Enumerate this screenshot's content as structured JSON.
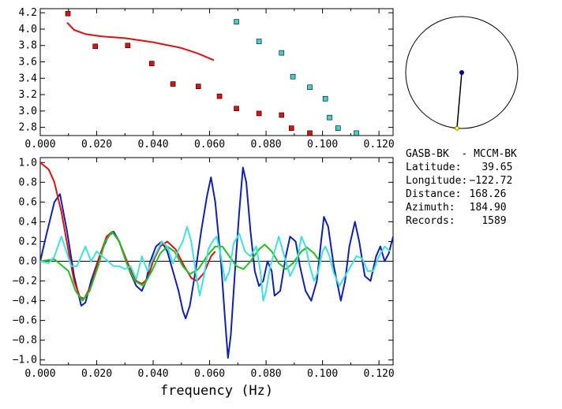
{
  "chart_data": [
    {
      "type": "scatter",
      "xlim": [
        0.0,
        0.125
      ],
      "ylim": [
        2.7,
        4.25
      ],
      "xticks": [
        "0.000",
        "0.020",
        "0.040",
        "0.060",
        "0.080",
        "0.100",
        "0.120"
      ],
      "yticks": [
        "2.8",
        "3.0",
        "3.2",
        "3.4",
        "3.6",
        "3.8",
        "4.0",
        "4.2"
      ],
      "series": [
        {
          "color": "#e01010",
          "marker": "square",
          "points": [
            [
              0.0098,
              4.19
            ],
            [
              0.0195,
              3.79
            ],
            [
              0.031,
              3.8
            ],
            [
              0.0395,
              3.58
            ],
            [
              0.047,
              3.33
            ],
            [
              0.056,
              3.3
            ],
            [
              0.0635,
              3.18
            ],
            [
              0.0695,
              3.03
            ],
            [
              0.0775,
              2.97
            ],
            [
              0.0855,
              2.95
            ],
            [
              0.089,
              2.79
            ],
            [
              0.0955,
              2.73
            ]
          ]
        },
        {
          "color": "#40d0d0",
          "marker": "square",
          "points": [
            [
              0.0695,
              4.09
            ],
            [
              0.0775,
              3.85
            ],
            [
              0.0855,
              3.71
            ],
            [
              0.0895,
              3.42
            ],
            [
              0.0955,
              3.29
            ],
            [
              0.101,
              3.15
            ],
            [
              0.1025,
              2.92
            ],
            [
              0.1055,
              2.79
            ],
            [
              0.112,
              2.73
            ]
          ]
        },
        {
          "color": "#e01010",
          "marker": "line",
          "points": [
            [
              0.0095,
              4.08
            ],
            [
              0.012,
              3.99
            ],
            [
              0.016,
              3.94
            ],
            [
              0.022,
              3.91
            ],
            [
              0.03,
              3.89
            ],
            [
              0.04,
              3.84
            ],
            [
              0.05,
              3.77
            ],
            [
              0.056,
              3.7
            ],
            [
              0.0615,
              3.62
            ]
          ]
        }
      ]
    },
    {
      "type": "line",
      "xlim": [
        0.0,
        0.125
      ],
      "ylim": [
        -1.05,
        1.05
      ],
      "xticks": [
        "0.000",
        "0.020",
        "0.040",
        "0.060",
        "0.080",
        "0.100",
        "0.120"
      ],
      "yticks": [
        "1.0",
        "0.8",
        "0.6",
        "0.4",
        "0.2",
        "0.0",
        "−0.2",
        "−0.4",
        "−0.6",
        "−0.8",
        "−1.0"
      ],
      "xlabel": "frequency (Hz)",
      "zero_line": true,
      "series": [
        {
          "color": "#1020b0",
          "points": [
            [
              0.0,
              0.0
            ],
            [
              0.002,
              0.25
            ],
            [
              0.005,
              0.6
            ],
            [
              0.007,
              0.68
            ],
            [
              0.0095,
              0.3
            ],
            [
              0.012,
              -0.15
            ],
            [
              0.0145,
              -0.45
            ],
            [
              0.016,
              -0.42
            ],
            [
              0.018,
              -0.2
            ],
            [
              0.021,
              0.05
            ],
            [
              0.024,
              0.25
            ],
            [
              0.026,
              0.3
            ],
            [
              0.028,
              0.2
            ],
            [
              0.03,
              0.03
            ],
            [
              0.032,
              -0.12
            ],
            [
              0.034,
              -0.25
            ],
            [
              0.036,
              -0.3
            ],
            [
              0.0375,
              -0.2
            ],
            [
              0.039,
              0.0
            ],
            [
              0.041,
              0.15
            ],
            [
              0.043,
              0.2
            ],
            [
              0.045,
              0.1
            ],
            [
              0.047,
              -0.1
            ],
            [
              0.049,
              -0.3
            ],
            [
              0.0505,
              -0.5
            ],
            [
              0.0515,
              -0.58
            ],
            [
              0.053,
              -0.45
            ],
            [
              0.055,
              -0.1
            ],
            [
              0.057,
              0.3
            ],
            [
              0.059,
              0.65
            ],
            [
              0.0605,
              0.85
            ],
            [
              0.062,
              0.6
            ],
            [
              0.064,
              0.0
            ],
            [
              0.0655,
              -0.6
            ],
            [
              0.0665,
              -0.98
            ],
            [
              0.0675,
              -0.75
            ],
            [
              0.069,
              -0.1
            ],
            [
              0.0705,
              0.5
            ],
            [
              0.0718,
              0.95
            ],
            [
              0.073,
              0.8
            ],
            [
              0.0745,
              0.3
            ],
            [
              0.076,
              -0.1
            ],
            [
              0.0775,
              -0.25
            ],
            [
              0.079,
              -0.2
            ],
            [
              0.0805,
              0.0
            ],
            [
              0.082,
              -0.1
            ],
            [
              0.083,
              -0.35
            ],
            [
              0.085,
              -0.3
            ],
            [
              0.087,
              0.05
            ],
            [
              0.0885,
              0.25
            ],
            [
              0.0905,
              0.2
            ],
            [
              0.092,
              -0.05
            ],
            [
              0.094,
              -0.3
            ],
            [
              0.096,
              -0.4
            ],
            [
              0.098,
              -0.2
            ],
            [
              0.0995,
              0.2
            ],
            [
              0.1005,
              0.45
            ],
            [
              0.102,
              0.35
            ],
            [
              0.104,
              -0.05
            ],
            [
              0.1065,
              -0.4
            ],
            [
              0.108,
              -0.2
            ],
            [
              0.1095,
              0.15
            ],
            [
              0.1115,
              0.4
            ],
            [
              0.113,
              0.2
            ],
            [
              0.115,
              -0.15
            ],
            [
              0.117,
              -0.2
            ],
            [
              0.119,
              0.05
            ],
            [
              0.1205,
              0.15
            ],
            [
              0.122,
              0.0
            ],
            [
              0.1235,
              0.08
            ],
            [
              0.125,
              0.25
            ]
          ]
        },
        {
          "color": "#e01010",
          "points": [
            [
              0.0,
              1.0
            ],
            [
              0.003,
              0.93
            ],
            [
              0.005,
              0.8
            ],
            [
              0.0075,
              0.5
            ],
            [
              0.01,
              0.1
            ],
            [
              0.012,
              -0.2
            ],
            [
              0.014,
              -0.36
            ],
            [
              0.0155,
              -0.38
            ],
            [
              0.018,
              -0.25
            ],
            [
              0.021,
              0.05
            ],
            [
              0.0235,
              0.25
            ],
            [
              0.0255,
              0.3
            ],
            [
              0.028,
              0.2
            ],
            [
              0.031,
              -0.02
            ],
            [
              0.034,
              -0.2
            ],
            [
              0.036,
              -0.23
            ],
            [
              0.038,
              -0.18
            ],
            [
              0.04,
              0.0
            ],
            [
              0.0425,
              0.15
            ],
            [
              0.045,
              0.2
            ],
            [
              0.048,
              0.12
            ],
            [
              0.051,
              -0.05
            ],
            [
              0.0535,
              -0.17
            ],
            [
              0.0555,
              -0.2
            ],
            [
              0.058,
              -0.12
            ],
            [
              0.0605,
              0.05
            ],
            [
              0.062,
              0.1
            ]
          ]
        },
        {
          "color": "#20c020",
          "points": [
            [
              0.0,
              0.0
            ],
            [
              0.005,
              0.02
            ],
            [
              0.01,
              -0.1
            ],
            [
              0.0125,
              -0.3
            ],
            [
              0.015,
              -0.4
            ],
            [
              0.0175,
              -0.3
            ],
            [
              0.0205,
              -0.05
            ],
            [
              0.023,
              0.2
            ],
            [
              0.0255,
              0.3
            ],
            [
              0.028,
              0.2
            ],
            [
              0.031,
              -0.05
            ],
            [
              0.0335,
              -0.2
            ],
            [
              0.0365,
              -0.25
            ],
            [
              0.0395,
              -0.1
            ],
            [
              0.0425,
              0.08
            ],
            [
              0.045,
              0.15
            ],
            [
              0.0475,
              0.1
            ],
            [
              0.0505,
              -0.05
            ],
            [
              0.053,
              -0.13
            ],
            [
              0.056,
              -0.08
            ],
            [
              0.059,
              0.05
            ],
            [
              0.062,
              0.15
            ],
            [
              0.0645,
              0.15
            ],
            [
              0.067,
              0.05
            ],
            [
              0.0695,
              -0.05
            ],
            [
              0.072,
              -0.08
            ],
            [
              0.0745,
              0.0
            ],
            [
              0.0775,
              0.12
            ],
            [
              0.0795,
              0.17
            ],
            [
              0.082,
              0.1
            ],
            [
              0.0845,
              -0.02
            ],
            [
              0.087,
              -0.08
            ],
            [
              0.0895,
              -0.02
            ],
            [
              0.0925,
              0.1
            ],
            [
              0.0945,
              0.14
            ],
            [
              0.097,
              0.08
            ],
            [
              0.099,
              0.0
            ]
          ]
        },
        {
          "color": "#40e0e0",
          "points": [
            [
              0.0,
              0.0
            ],
            [
              0.003,
              -0.02
            ],
            [
              0.005,
              0.05
            ],
            [
              0.0075,
              0.25
            ],
            [
              0.009,
              0.12
            ],
            [
              0.011,
              -0.05
            ],
            [
              0.013,
              -0.05
            ],
            [
              0.016,
              0.15
            ],
            [
              0.018,
              0.0
            ],
            [
              0.02,
              0.1
            ],
            [
              0.022,
              0.05
            ],
            [
              0.024,
              0.0
            ],
            [
              0.026,
              -0.05
            ],
            [
              0.028,
              -0.05
            ],
            [
              0.03,
              -0.08
            ],
            [
              0.032,
              -0.05
            ],
            [
              0.034,
              -0.18
            ],
            [
              0.036,
              0.05
            ],
            [
              0.038,
              -0.1
            ],
            [
              0.0395,
              0.0
            ],
            [
              0.041,
              0.08
            ],
            [
              0.043,
              0.2
            ],
            [
              0.045,
              0.15
            ],
            [
              0.047,
              -0.02
            ],
            [
              0.049,
              0.12
            ],
            [
              0.0505,
              0.2
            ],
            [
              0.052,
              0.35
            ],
            [
              0.0535,
              0.2
            ],
            [
              0.055,
              -0.1
            ],
            [
              0.0565,
              -0.35
            ],
            [
              0.058,
              -0.15
            ],
            [
              0.0595,
              0.12
            ],
            [
              0.061,
              0.2
            ],
            [
              0.0625,
              0.25
            ],
            [
              0.064,
              0.05
            ],
            [
              0.0655,
              -0.2
            ],
            [
              0.067,
              -0.1
            ],
            [
              0.0685,
              0.18
            ],
            [
              0.0705,
              0.28
            ],
            [
              0.0725,
              0.1
            ],
            [
              0.0745,
              0.05
            ],
            [
              0.0765,
              0.15
            ],
            [
              0.078,
              -0.1
            ],
            [
              0.079,
              -0.4
            ],
            [
              0.08,
              -0.3
            ],
            [
              0.0815,
              -0.05
            ],
            [
              0.083,
              0.1
            ],
            [
              0.0845,
              0.25
            ],
            [
              0.0865,
              0.05
            ],
            [
              0.0885,
              -0.15
            ],
            [
              0.091,
              0.0
            ],
            [
              0.0925,
              0.25
            ],
            [
              0.094,
              0.15
            ],
            [
              0.0955,
              -0.05
            ],
            [
              0.097,
              -0.2
            ],
            [
              0.0985,
              -0.1
            ],
            [
              0.1,
              0.1
            ],
            [
              0.101,
              0.15
            ],
            [
              0.1025,
              0.05
            ],
            [
              0.104,
              -0.12
            ],
            [
              0.106,
              -0.25
            ],
            [
              0.108,
              -0.15
            ],
            [
              0.11,
              -0.05
            ],
            [
              0.112,
              0.05
            ],
            [
              0.114,
              0.03
            ],
            [
              0.116,
              -0.1
            ],
            [
              0.118,
              -0.1
            ],
            [
              0.12,
              0.05
            ],
            [
              0.122,
              0.15
            ],
            [
              0.124,
              0.1
            ]
          ]
        }
      ]
    }
  ],
  "map_panel": {
    "circle_stroke": "#000000",
    "azimuth_deg": 184.9,
    "station_color": "#ffff00",
    "center_dot_color": "#000080"
  },
  "info": {
    "pair": "GASB-BK  - MCCM-BK",
    "latitude_label": "Latitude:",
    "latitude_value": "39.65",
    "longitude_label": "Longitude:",
    "longitude_value": "−122.72",
    "distance_label": "Distance:",
    "distance_value": "168.26",
    "azimuth_label": "Azimuth:",
    "azimuth_value": "184.90",
    "records_label": "Records:",
    "records_value": "1589"
  }
}
